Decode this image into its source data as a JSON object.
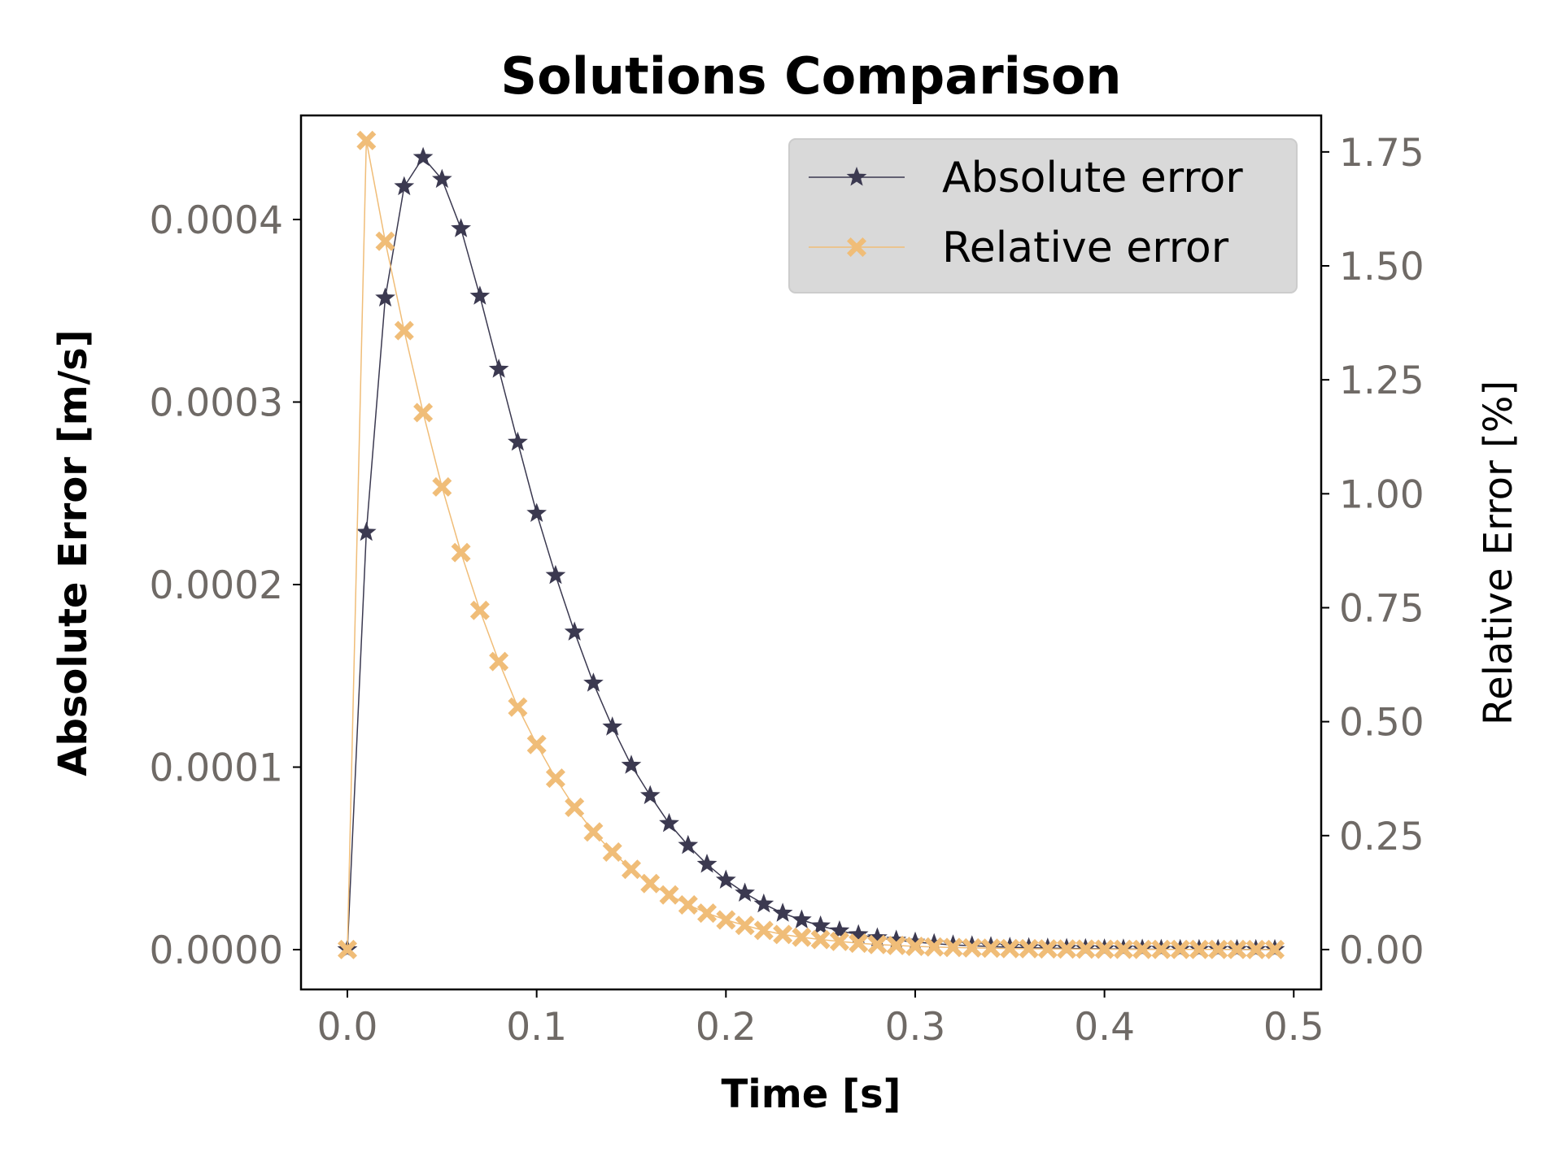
{
  "chart_data": {
    "type": "line",
    "title": "Solutions Comparison",
    "xlabel": "Time [s]",
    "ylabel": "Absolute Error [m/s]",
    "ylabel_right": "Relative Error [%]",
    "xlim": [
      -0.0245,
      0.5145
    ],
    "ylim": [
      -2.18e-05,
      0.000457
    ],
    "ylim_right": [
      -0.0875,
      1.83
    ],
    "xticks": [
      "0.0",
      "0.1",
      "0.2",
      "0.3",
      "0.4",
      "0.5"
    ],
    "yticks": [
      "0.0000",
      "0.0001",
      "0.0002",
      "0.0003",
      "0.0004"
    ],
    "yticks_right": [
      "0.00",
      "0.25",
      "0.50",
      "0.75",
      "1.00",
      "1.25",
      "1.50",
      "1.75"
    ],
    "grid": false,
    "legend_position": "top-right",
    "x": [
      0.0,
      0.01,
      0.02,
      0.03,
      0.04,
      0.05,
      0.06,
      0.07,
      0.08,
      0.09,
      0.1,
      0.11,
      0.12,
      0.13,
      0.14,
      0.15,
      0.16,
      0.17,
      0.18,
      0.19,
      0.2,
      0.21,
      0.22,
      0.23,
      0.24,
      0.25,
      0.26,
      0.27,
      0.28,
      0.29,
      0.3,
      0.31,
      0.32,
      0.33,
      0.34,
      0.35,
      0.36,
      0.37,
      0.38,
      0.39,
      0.4,
      0.41,
      0.42,
      0.43,
      0.44,
      0.45,
      0.46,
      0.47,
      0.48,
      0.49
    ],
    "series": [
      {
        "name": "Absolute error",
        "axis": "left",
        "color": "#3b3950",
        "marker": "star",
        "values": [
          0,
          0.0002286,
          0.000357,
          0.000418,
          0.000434,
          0.000422,
          0.000395,
          0.000358,
          0.000318,
          0.000278,
          0.000239,
          0.000205,
          0.000174,
          0.000146,
          0.000122,
          0.000101,
          8.44e-05,
          6.91e-05,
          5.71e-05,
          4.68e-05,
          3.81e-05,
          3.1e-05,
          2.5e-05,
          2e-05,
          1.63e-05,
          1.3e-05,
          1.03e-05,
          8.2e-06,
          6.5e-06,
          5.2e-06,
          4.1e-06,
          3.3e-06,
          2.6e-06,
          2.1e-06,
          1.7e-06,
          1.3e-06,
          1.1e-06,
          8.5e-07,
          6.8e-07,
          5.4e-07,
          4.4e-07,
          3.5e-07,
          2.8e-07,
          2.2e-07,
          1.8e-07,
          1.4e-07,
          1.1e-07,
          9e-08,
          7e-08,
          6e-08
        ]
      },
      {
        "name": "Relative error",
        "axis": "right",
        "color": "#f0bd78",
        "marker": "x-filled",
        "values": [
          0,
          1.775,
          1.554,
          1.358,
          1.178,
          1.015,
          0.871,
          0.744,
          0.632,
          0.532,
          0.45,
          0.376,
          0.312,
          0.258,
          0.214,
          0.176,
          0.145,
          0.12,
          0.098,
          0.08,
          0.065,
          0.053,
          0.042,
          0.033,
          0.027,
          0.022,
          0.018,
          0.014,
          0.011,
          0.009,
          0.007,
          0.0057,
          0.0046,
          0.0036,
          0.0029,
          0.0023,
          0.0019,
          0.0015,
          0.0012,
          0.001,
          0.0008,
          0.0006,
          0.0005,
          0.0004,
          0.0003,
          0.0003,
          0.0002,
          0.0002,
          0.0001,
          0.0001
        ]
      }
    ]
  }
}
